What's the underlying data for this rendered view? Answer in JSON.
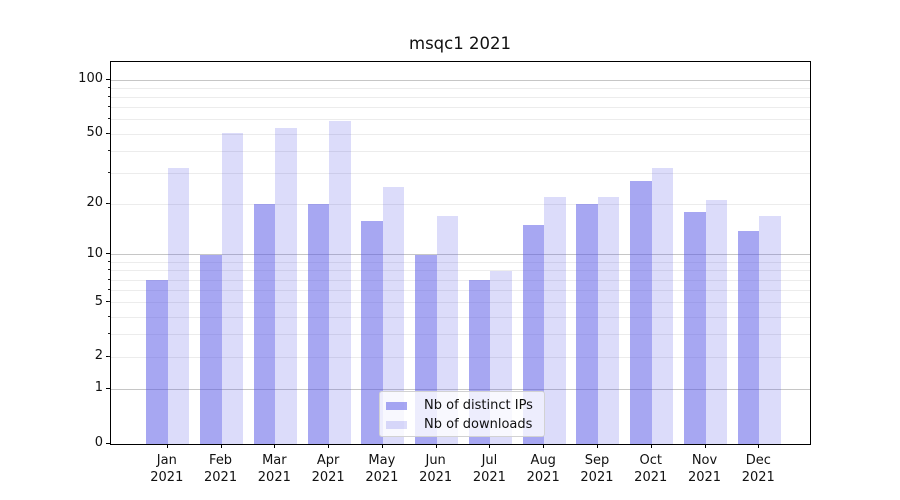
{
  "title": "msqc1 2021",
  "chart_data": {
    "type": "bar",
    "title": "msqc1 2021",
    "xlabel": "",
    "ylabel": "",
    "scale": "log1p",
    "ylim": [
      0,
      127
    ],
    "grid": true,
    "categories": [
      "Jan",
      "Feb",
      "Mar",
      "Apr",
      "May",
      "Jun",
      "Jul",
      "Aug",
      "Sep",
      "Oct",
      "Nov",
      "Dec"
    ],
    "category_year": "2021",
    "series": [
      {
        "name": "Nb of distinct IPs",
        "color_base": "#5050e6",
        "opacity": 0.5,
        "values": [
          7,
          10,
          20,
          20,
          16,
          10,
          7,
          15,
          20,
          27,
          18,
          14
        ]
      },
      {
        "name": "Nb of downloads",
        "color_base": "#5050e6",
        "opacity": 0.2,
        "values": [
          32,
          51,
          54,
          59,
          25,
          17,
          8,
          22,
          22,
          32,
          21,
          17
        ]
      }
    ],
    "yticks_labeled": [
      0,
      1,
      2,
      5,
      10,
      20,
      50,
      100
    ],
    "grid_major_values": [
      1,
      10,
      100
    ],
    "grid_minor_values": [
      2,
      3,
      4,
      5,
      6,
      7,
      8,
      9,
      20,
      30,
      40,
      50,
      60,
      70,
      80,
      90
    ],
    "legend": {
      "position": "lower center",
      "entries": [
        "Nb of distinct IPs",
        "Nb of downloads"
      ]
    }
  }
}
